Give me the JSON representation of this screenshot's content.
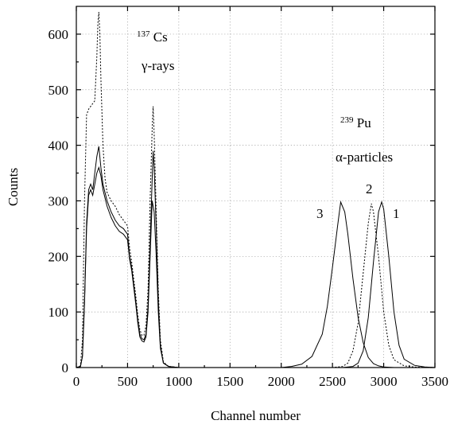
{
  "chart_data": {
    "type": "line",
    "xlabel": "Channel number",
    "ylabel": "Counts",
    "xlim": [
      0,
      3500
    ],
    "ylim": [
      0,
      650
    ],
    "x_ticks": [
      "0",
      "500",
      "1000",
      "1500",
      "2000",
      "2500",
      "3000",
      "3500"
    ],
    "y_ticks": [
      "0",
      "100",
      "200",
      "300",
      "400",
      "500",
      "600"
    ],
    "grid": true,
    "annotations": {
      "cs_mass": "137",
      "cs_element": "Cs",
      "cs_radiation": "γ-rays",
      "pu_mass": "239",
      "pu_element": "Pu",
      "pu_radiation": "α-particles",
      "peak_1": "1",
      "peak_2": "2",
      "peak_3": "3"
    },
    "series": [
      {
        "style": "solid",
        "color": "#000000",
        "x": [
          0,
          40,
          60,
          80,
          100,
          120,
          140,
          160,
          180,
          200,
          220,
          240,
          260,
          300,
          340,
          380,
          420,
          460,
          500,
          520,
          540,
          580,
          600,
          620,
          640,
          660,
          680,
          700,
          720,
          740,
          750,
          760,
          780,
          800,
          820,
          850,
          900,
          1000,
          1200,
          1600,
          2000,
          2100,
          2200,
          2300,
          2400,
          2450,
          2500,
          2550,
          2580,
          2620,
          2650,
          2700,
          2750,
          2800,
          2850,
          2900,
          2950,
          3000,
          3100,
          3200,
          3300,
          3400,
          3500
        ],
        "y": [
          0,
          2,
          20,
          120,
          260,
          320,
          330,
          320,
          350,
          380,
          398,
          360,
          330,
          300,
          280,
          265,
          255,
          250,
          240,
          200,
          180,
          120,
          85,
          60,
          52,
          50,
          60,
          110,
          220,
          340,
          390,
          360,
          250,
          120,
          40,
          8,
          2,
          0,
          0,
          0,
          0,
          2,
          6,
          20,
          60,
          110,
          180,
          255,
          298,
          280,
          240,
          160,
          90,
          45,
          18,
          7,
          3,
          1,
          0,
          0,
          0,
          0,
          0
        ]
      },
      {
        "style": "solid",
        "color": "#000000",
        "x": [
          0,
          40,
          60,
          80,
          100,
          120,
          140,
          160,
          180,
          200,
          220,
          240,
          260,
          300,
          340,
          380,
          420,
          460,
          500,
          520,
          540,
          580,
          600,
          620,
          640,
          660,
          680,
          700,
          720,
          740,
          760,
          780,
          800,
          820,
          850,
          900,
          1000,
          2600,
          2700,
          2750,
          2800,
          2850,
          2900,
          2950,
          2980,
          3000,
          3050,
          3100,
          3150,
          3200,
          3300,
          3400,
          3500
        ],
        "y": [
          0,
          2,
          20,
          115,
          250,
          310,
          320,
          310,
          330,
          350,
          360,
          345,
          320,
          290,
          270,
          255,
          245,
          240,
          230,
          195,
          175,
          115,
          80,
          55,
          48,
          46,
          55,
          100,
          200,
          300,
          280,
          200,
          100,
          35,
          8,
          2,
          0,
          0,
          2,
          8,
          30,
          90,
          190,
          280,
          298,
          285,
          200,
          100,
          40,
          15,
          4,
          1,
          0
        ]
      },
      {
        "style": "dotted",
        "color": "#000000",
        "x": [
          0,
          40,
          60,
          80,
          100,
          120,
          140,
          160,
          180,
          200,
          210,
          220,
          230,
          240,
          260,
          280,
          300,
          340,
          380,
          420,
          460,
          500,
          520,
          540,
          580,
          600,
          620,
          640,
          660,
          680,
          700,
          720,
          740,
          750,
          760,
          780,
          800,
          820,
          850,
          900,
          1000,
          2500,
          2600,
          2650,
          2700,
          2750,
          2800,
          2850,
          2880,
          2900,
          2950,
          3000,
          3050,
          3100,
          3200,
          3300,
          3500
        ],
        "y": [
          0,
          3,
          50,
          300,
          455,
          465,
          470,
          475,
          480,
          560,
          620,
          640,
          600,
          520,
          400,
          340,
          315,
          300,
          290,
          275,
          265,
          255,
          215,
          190,
          130,
          95,
          68,
          58,
          58,
          75,
          140,
          300,
          430,
          470,
          420,
          280,
          140,
          50,
          10,
          2,
          0,
          0,
          2,
          8,
          30,
          80,
          170,
          260,
          295,
          280,
          200,
          100,
          40,
          14,
          3,
          1,
          0
        ]
      }
    ]
  }
}
